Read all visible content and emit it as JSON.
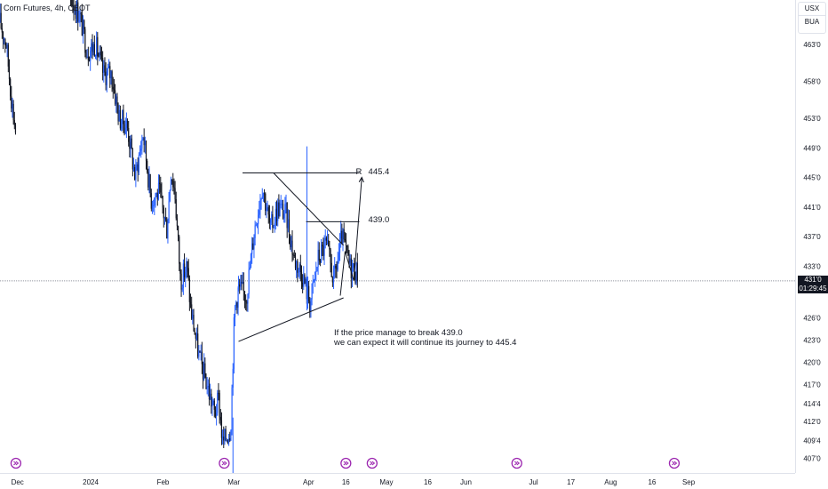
{
  "header": {
    "title": "Corn Futures, 4h, CBOT"
  },
  "price_scale_controls": {
    "currency": "USX",
    "unit": "BUA"
  },
  "current_price": {
    "value": 431.0,
    "label": "431'0",
    "countdown": "01:29:45"
  },
  "annotations": {
    "note_line1": "If the price manage to break 439.0",
    "note_line2": "we can expect it will continue its journey to 445.4",
    "resistance_tag": "R",
    "level_upper": {
      "value": 445.4,
      "label": "445.4"
    },
    "level_lower": {
      "value": 439.0,
      "label": "439.0"
    }
  },
  "colors": {
    "up": "#2962ff",
    "down": "#131722",
    "line": "#131722",
    "grid": "#e0e3eb",
    "event": "#9c27b0"
  },
  "chart_data": {
    "type": "candlestick",
    "title": "Corn Futures, 4h, CBOT",
    "y_axis": {
      "range": [
        405,
        469
      ],
      "ticks": [
        {
          "v": 463.0,
          "label": "463'0"
        },
        {
          "v": 458.0,
          "label": "458'0"
        },
        {
          "v": 453.0,
          "label": "453'0"
        },
        {
          "v": 449.0,
          "label": "449'0"
        },
        {
          "v": 445.0,
          "label": "445'0"
        },
        {
          "v": 441.0,
          "label": "441'0"
        },
        {
          "v": 437.0,
          "label": "437'0"
        },
        {
          "v": 433.0,
          "label": "433'0"
        },
        {
          "v": 426.0,
          "label": "426'0"
        },
        {
          "v": 423.0,
          "label": "423'0"
        },
        {
          "v": 420.0,
          "label": "420'0"
        },
        {
          "v": 417.0,
          "label": "417'0"
        },
        {
          "v": 414.4,
          "label": "414'4"
        },
        {
          "v": 412.0,
          "label": "412'0"
        },
        {
          "v": 409.4,
          "label": "409'4"
        },
        {
          "v": 407.0,
          "label": "407'0"
        }
      ]
    },
    "x_axis": {
      "range": [
        0,
        100
      ],
      "ticks": [
        {
          "v": 2.2,
          "label": "Dec"
        },
        {
          "v": 11.4,
          "label": "2024"
        },
        {
          "v": 20.5,
          "label": "Feb"
        },
        {
          "v": 29.4,
          "label": "Mar"
        },
        {
          "v": 38.8,
          "label": "Apr"
        },
        {
          "v": 43.5,
          "label": "16"
        },
        {
          "v": 48.6,
          "label": "May"
        },
        {
          "v": 53.8,
          "label": "16"
        },
        {
          "v": 58.6,
          "label": "Jun"
        },
        {
          "v": 67.1,
          "label": "Jul"
        },
        {
          "v": 71.8,
          "label": "17"
        },
        {
          "v": 76.8,
          "label": "Aug"
        },
        {
          "v": 82.0,
          "label": "16"
        },
        {
          "v": 86.6,
          "label": "Sep"
        }
      ]
    },
    "segments": [
      {
        "x0": 0,
        "x1": 2.0,
        "p": [
          [
            0,
            466
          ],
          [
            0.8,
            463
          ],
          [
            1.5,
            455
          ],
          [
            2.0,
            451
          ]
        ]
      },
      {
        "x0": 8.5,
        "x1": 30.0,
        "p": [
          [
            8.5,
            470
          ],
          [
            10,
            467
          ],
          [
            11,
            462
          ],
          [
            12,
            463
          ],
          [
            13,
            459
          ],
          [
            14,
            459
          ],
          [
            15,
            453
          ],
          [
            16,
            452
          ],
          [
            17,
            445
          ],
          [
            18,
            451
          ],
          [
            19,
            442
          ],
          [
            20,
            443
          ],
          [
            21,
            438
          ],
          [
            21.5,
            446
          ],
          [
            22,
            443
          ],
          [
            22.7,
            431
          ],
          [
            23.5,
            433
          ],
          [
            24,
            427
          ],
          [
            25,
            421
          ],
          [
            26,
            417
          ],
          [
            27,
            413
          ],
          [
            27.5,
            415
          ],
          [
            28,
            409
          ],
          [
            29,
            411
          ],
          [
            29.5,
            427
          ],
          [
            30,
            430
          ]
        ]
      },
      {
        "x0": 30.0,
        "x1": 45.0,
        "p": [
          [
            30,
            430
          ],
          [
            31,
            429
          ],
          [
            32,
            438
          ],
          [
            33,
            444
          ],
          [
            34,
            438
          ],
          [
            35,
            441
          ],
          [
            36,
            440
          ],
          [
            37,
            434
          ],
          [
            38,
            432
          ],
          [
            39,
            428
          ],
          [
            40,
            434
          ],
          [
            41,
            436
          ],
          [
            42,
            431
          ],
          [
            43,
            437
          ],
          [
            44,
            433
          ],
          [
            45,
            432
          ]
        ]
      }
    ],
    "spikes": [
      {
        "x": 38.6,
        "hi": 449.2,
        "lo": 427.0
      },
      {
        "x": 29.3,
        "hi": 412.5,
        "lo": 405.0
      }
    ],
    "event_markers": [
      2.0,
      28.2,
      43.5,
      46.8,
      65.0,
      84.8
    ],
    "drawing": {
      "support": [
        [
          30.0,
          422.8
        ],
        [
          43.2,
          428.7
        ]
      ],
      "resistance": [
        [
          34.4,
          445.6
        ],
        [
          43.2,
          435.8
        ]
      ],
      "level_upper": [
        [
          30.5,
          445.6
        ],
        [
          45.2,
          445.6
        ]
      ],
      "level_lower": [
        [
          38.5,
          439.0
        ],
        [
          45.2,
          439.0
        ]
      ],
      "projection": [
        [
          42.8,
          429.0
        ],
        [
          43.4,
          435.0
        ],
        [
          44.5,
          431.0
        ],
        [
          45.5,
          445.0
        ]
      ]
    }
  }
}
